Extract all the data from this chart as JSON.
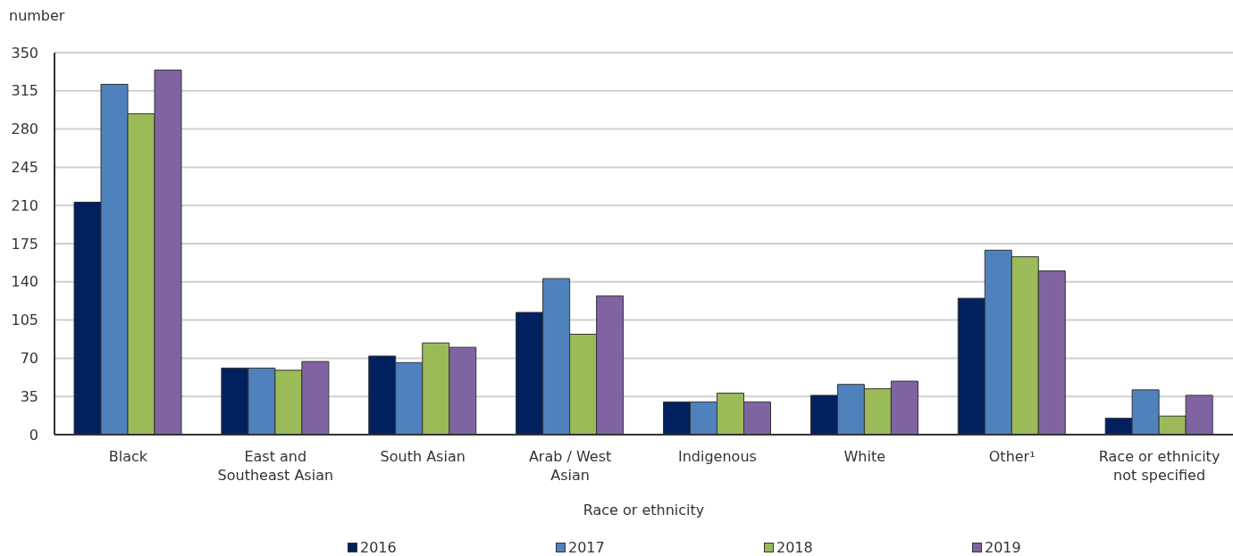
{
  "chart_data": {
    "type": "bar",
    "ylabel": "number",
    "xlabel": "Race or ethnicity",
    "categories": [
      "Black",
      "East and Southeast Asian",
      "South Asian",
      "Arab / West Asian",
      "Indigenous",
      "White",
      "Other¹",
      "Race or ethnicity not specified"
    ],
    "series": [
      {
        "name": "2016",
        "color": "#002060",
        "values": [
          213,
          61,
          72,
          112,
          30,
          36,
          125,
          15
        ]
      },
      {
        "name": "2017",
        "color": "#4f81bd",
        "values": [
          321,
          61,
          66,
          143,
          30,
          46,
          169,
          41
        ]
      },
      {
        "name": "2018",
        "color": "#9bbb59",
        "values": [
          294,
          59,
          84,
          92,
          38,
          42,
          163,
          17
        ]
      },
      {
        "name": "2019",
        "color": "#8064a2",
        "values": [
          334,
          67,
          80,
          127,
          30,
          49,
          150,
          36
        ]
      }
    ],
    "ylim": [
      0,
      350
    ],
    "yticks": [
      0,
      35,
      70,
      105,
      140,
      175,
      210,
      245,
      280,
      315,
      350
    ],
    "grid": "y",
    "legend": "bottom"
  }
}
